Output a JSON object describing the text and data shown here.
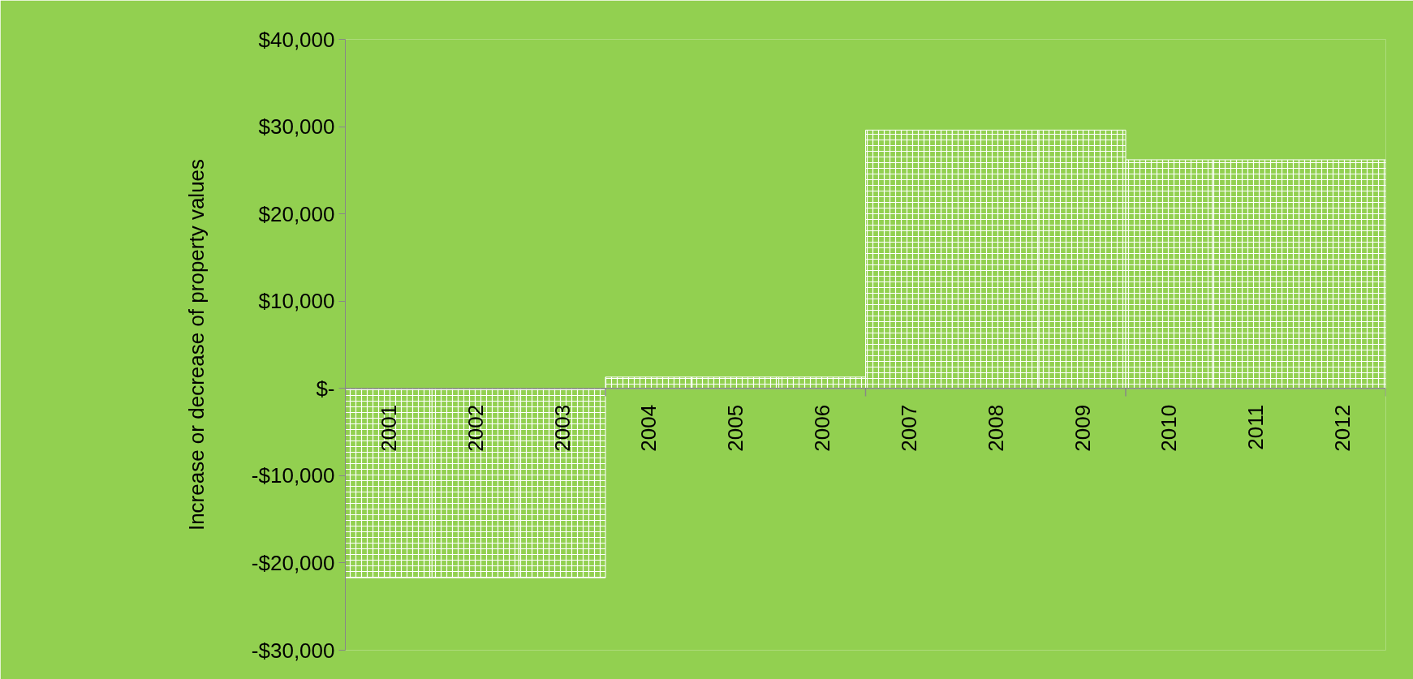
{
  "chart_data": {
    "type": "bar",
    "ylabel": "Increase or decrease of property values",
    "categories": [
      "2001",
      "2002",
      "2003",
      "2004",
      "2005",
      "2006",
      "2007",
      "2008",
      "2009",
      "2010",
      "2011",
      "2012"
    ],
    "values": [
      -21700,
      -21700,
      -21700,
      1300,
      1300,
      1300,
      29600,
      29600,
      29600,
      26200,
      26200,
      26200
    ],
    "color": "#92d050",
    "ylim": [
      -30000,
      40000
    ],
    "yticks": [
      {
        "value": -30000,
        "label": "-$30,000"
      },
      {
        "value": -20000,
        "label": "-$20,000"
      },
      {
        "value": -10000,
        "label": "-$10,000"
      },
      {
        "value": 0,
        "label": "$-"
      },
      {
        "value": 10000,
        "label": "$10,000"
      },
      {
        "value": 20000,
        "label": "$20,000"
      },
      {
        "value": 30000,
        "label": "$30,000"
      },
      {
        "value": 40000,
        "label": "$40,000"
      }
    ],
    "grid": false
  }
}
